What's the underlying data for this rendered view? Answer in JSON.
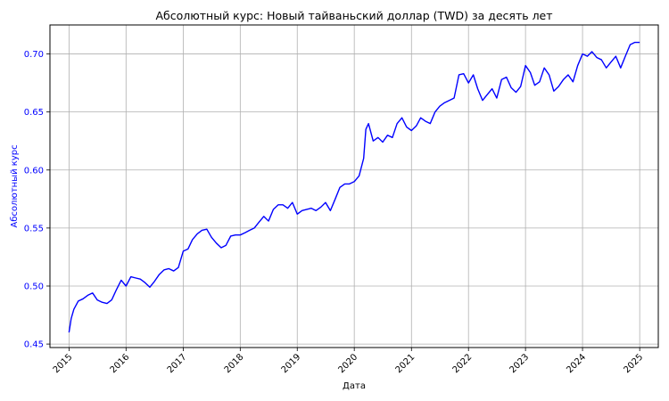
{
  "chart_data": {
    "type": "line",
    "title": "Абсолютный курс: Новый тайваньский доллар (TWD) за десять лет",
    "xlabel": "Дата",
    "ylabel": "Абсолютный курс",
    "x_ticks": [
      "2015",
      "2016",
      "2017",
      "2018",
      "2019",
      "2020",
      "2021",
      "2022",
      "2023",
      "2024",
      "2025"
    ],
    "y_ticks": [
      "0.45",
      "0.50",
      "0.55",
      "0.60",
      "0.65",
      "0.70"
    ],
    "xlim": [
      "2014-09-01",
      "2025-04-30"
    ],
    "ylim": [
      0.447,
      0.725
    ],
    "grid": true,
    "series": [
      {
        "color": "#0000ff",
        "x": [
          "2015-01-01",
          "2015-01-15",
          "2015-02-01",
          "2015-03-01",
          "2015-04-01",
          "2015-05-01",
          "2015-06-01",
          "2015-07-01",
          "2015-08-01",
          "2015-09-01",
          "2015-10-01",
          "2015-11-01",
          "2015-12-01",
          "2016-01-01",
          "2016-02-01",
          "2016-03-01",
          "2016-04-01",
          "2016-05-01",
          "2016-06-01",
          "2016-07-01",
          "2016-08-01",
          "2016-09-01",
          "2016-10-01",
          "2016-11-01",
          "2016-12-01",
          "2017-01-01",
          "2017-02-01",
          "2017-03-01",
          "2017-04-01",
          "2017-05-01",
          "2017-06-01",
          "2017-07-01",
          "2017-08-01",
          "2017-09-01",
          "2017-10-01",
          "2017-11-01",
          "2017-12-01",
          "2018-01-01",
          "2018-02-01",
          "2018-03-01",
          "2018-04-01",
          "2018-05-01",
          "2018-06-01",
          "2018-07-01",
          "2018-08-01",
          "2018-09-01",
          "2018-10-01",
          "2018-11-01",
          "2018-12-01",
          "2019-01-01",
          "2019-02-01",
          "2019-03-01",
          "2019-04-01",
          "2019-05-01",
          "2019-06-01",
          "2019-07-01",
          "2019-08-01",
          "2019-09-01",
          "2019-10-01",
          "2019-11-01",
          "2019-12-01",
          "2020-01-01",
          "2020-02-01",
          "2020-03-01",
          "2020-03-15",
          "2020-04-01",
          "2020-05-01",
          "2020-06-01",
          "2020-07-01",
          "2020-08-01",
          "2020-09-01",
          "2020-10-01",
          "2020-11-01",
          "2020-12-01",
          "2021-01-01",
          "2021-02-01",
          "2021-03-01",
          "2021-04-01",
          "2021-05-01",
          "2021-06-01",
          "2021-07-01",
          "2021-08-01",
          "2021-09-01",
          "2021-10-01",
          "2021-11-01",
          "2021-12-01",
          "2022-01-01",
          "2022-02-01",
          "2022-03-01",
          "2022-04-01",
          "2022-05-01",
          "2022-06-01",
          "2022-07-01",
          "2022-08-01",
          "2022-09-01",
          "2022-10-01",
          "2022-11-01",
          "2022-12-01",
          "2023-01-01",
          "2023-02-01",
          "2023-03-01",
          "2023-04-01",
          "2023-05-01",
          "2023-06-01",
          "2023-07-01",
          "2023-08-01",
          "2023-09-01",
          "2023-10-01",
          "2023-11-01",
          "2023-12-01",
          "2024-01-01",
          "2024-02-01",
          "2024-03-01",
          "2024-04-01",
          "2024-05-01",
          "2024-06-01",
          "2024-07-01",
          "2024-08-01",
          "2024-09-01",
          "2024-10-01",
          "2024-11-01",
          "2024-12-01",
          "2025-01-01"
        ],
        "values": [
          0.46,
          0.472,
          0.48,
          0.487,
          0.489,
          0.492,
          0.494,
          0.488,
          0.486,
          0.485,
          0.488,
          0.497,
          0.505,
          0.5,
          0.508,
          0.507,
          0.506,
          0.503,
          0.499,
          0.504,
          0.51,
          0.514,
          0.515,
          0.513,
          0.516,
          0.53,
          0.532,
          0.54,
          0.545,
          0.548,
          0.549,
          0.542,
          0.537,
          0.533,
          0.535,
          0.543,
          0.544,
          0.544,
          0.546,
          0.548,
          0.55,
          0.555,
          0.56,
          0.556,
          0.566,
          0.57,
          0.57,
          0.567,
          0.572,
          0.562,
          0.565,
          0.566,
          0.567,
          0.565,
          0.568,
          0.572,
          0.565,
          0.575,
          0.585,
          0.588,
          0.588,
          0.59,
          0.595,
          0.61,
          0.635,
          0.64,
          0.625,
          0.628,
          0.624,
          0.63,
          0.628,
          0.64,
          0.645,
          0.637,
          0.634,
          0.638,
          0.645,
          0.642,
          0.64,
          0.65,
          0.655,
          0.658,
          0.66,
          0.662,
          0.682,
          0.683,
          0.675,
          0.682,
          0.67,
          0.66,
          0.665,
          0.67,
          0.662,
          0.678,
          0.68,
          0.671,
          0.667,
          0.672,
          0.69,
          0.684,
          0.673,
          0.676,
          0.688,
          0.682,
          0.668,
          0.672,
          0.678,
          0.682,
          0.676,
          0.69,
          0.7,
          0.698,
          0.702,
          0.697,
          0.695,
          0.688,
          0.693,
          0.698,
          0.688,
          0.698,
          0.708,
          0.71,
          0.71
        ]
      }
    ]
  }
}
